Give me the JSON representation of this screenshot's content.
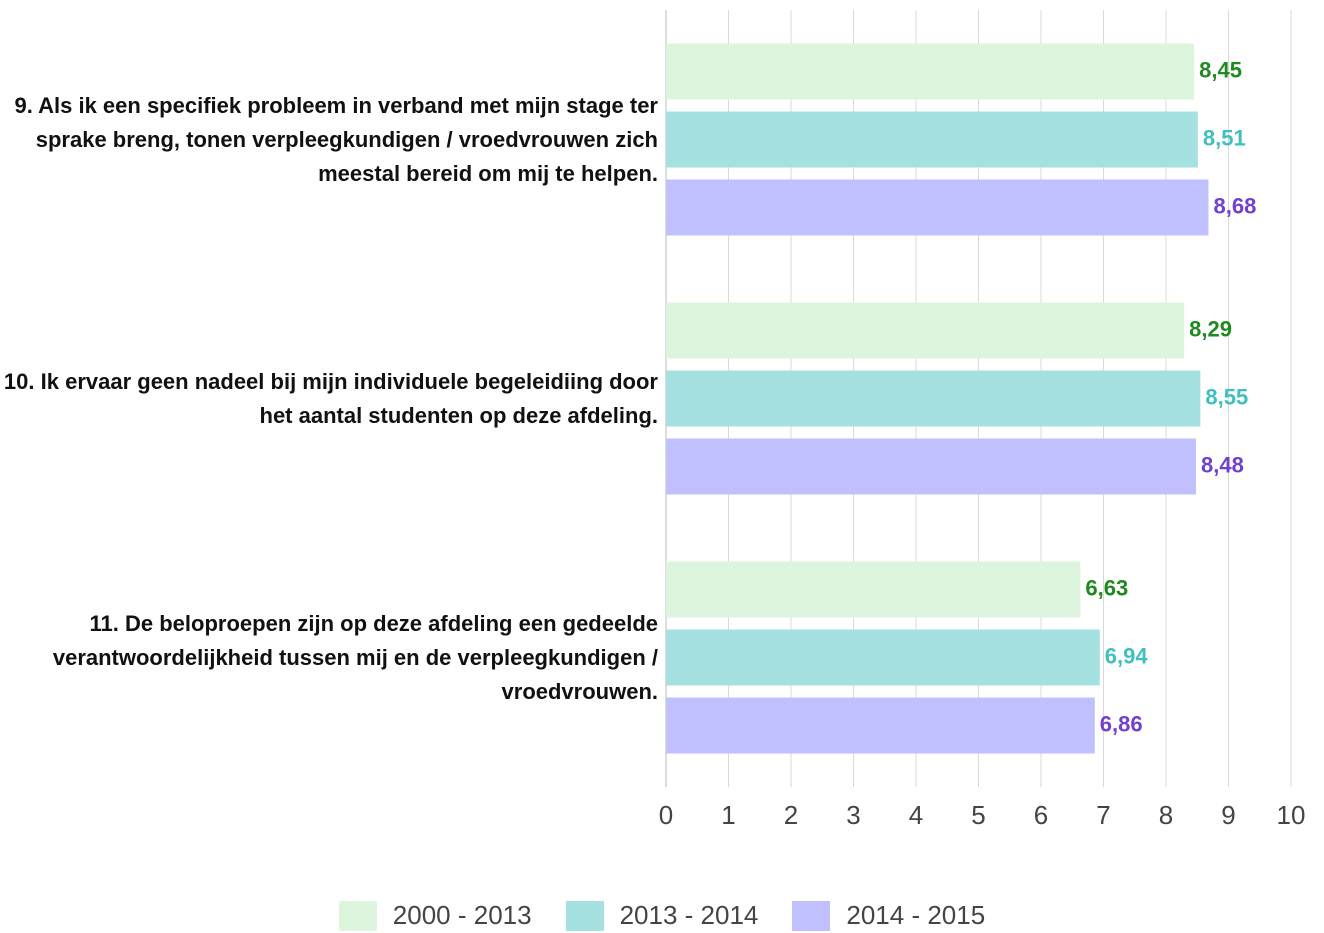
{
  "chart_data": {
    "type": "hbar",
    "categories": [
      "9. Als ik een specifiek probleem in verband met mijn stage ter sprake breng, tonen verpleegkundigen / vroedvrouwen zich meestal bereid om mij te helpen.",
      "10. Ik ervaar geen nadeel bij mijn individuele begeleidiing door het aantal studenten op deze afdeling.",
      "11. De beloproepen zijn op deze afdeling een gedeelde verantwoordelijkheid tussen mij en de verpleegkundigen / vroedvrouwen."
    ],
    "series": [
      {
        "name": "2000 - 2013",
        "color": "#dcf5dc",
        "label_color": "#1f8a1f",
        "values": [
          8.45,
          8.29,
          6.63
        ],
        "value_labels": [
          "8,45",
          "8,29",
          "6,63"
        ]
      },
      {
        "name": "2013 - 2014",
        "color": "#a4e1e0",
        "label_color": "#3fc0c0",
        "values": [
          8.51,
          8.55,
          6.94
        ],
        "value_labels": [
          "8,51",
          "8,55",
          "6,94"
        ]
      },
      {
        "name": "2014 - 2015",
        "color": "#c0c0ff",
        "label_color": "#7040d0",
        "values": [
          8.68,
          8.48,
          6.86
        ],
        "value_labels": [
          "8,68",
          "8,48",
          "6,86"
        ]
      }
    ],
    "xlim": [
      0,
      10
    ],
    "xticks": [
      0,
      1,
      2,
      3,
      4,
      5,
      6,
      7,
      8,
      9,
      10
    ],
    "grid": true,
    "legend": "bottom"
  }
}
